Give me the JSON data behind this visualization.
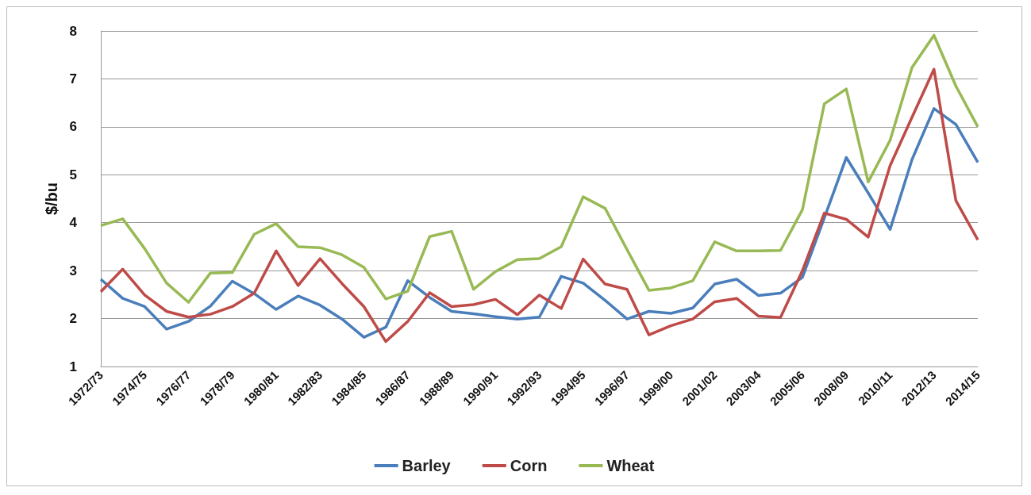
{
  "chart_data": {
    "type": "line",
    "ylabel": "$/bu",
    "categories": [
      "1972/73",
      null,
      "1974/75",
      null,
      "1976/77",
      null,
      "1978/79",
      null,
      "1980/81",
      null,
      "1982/83",
      null,
      "1984/85",
      null,
      "1986/87",
      null,
      "1988/89",
      null,
      "1990/91",
      null,
      "1992/93",
      null,
      "1994/95",
      null,
      "1996/97",
      null,
      "1999/00",
      null,
      "2001/02",
      null,
      "2003/04",
      null,
      "2005/06",
      null,
      "2008/09",
      null,
      "2010/11",
      null,
      "2012/13",
      null,
      "2014/15"
    ],
    "series": [
      {
        "name": "Barley",
        "color": "#4a7ebb",
        "values": [
          2.82,
          2.42,
          2.25,
          1.78,
          1.94,
          2.26,
          2.78,
          2.52,
          2.19,
          2.47,
          2.28,
          1.99,
          1.61,
          1.82,
          2.79,
          2.44,
          2.15,
          2.1,
          2.04,
          1.99,
          2.03,
          2.88,
          2.74,
          2.38,
          1.99,
          2.15,
          2.11,
          2.22,
          2.72,
          2.82,
          2.48,
          2.53,
          2.86,
          4.1,
          5.36,
          4.62,
          3.86,
          5.32,
          6.38,
          6.05,
          5.26
        ]
      },
      {
        "name": "Corn",
        "color": "#be4b48",
        "values": [
          2.56,
          3.03,
          2.49,
          2.15,
          2.03,
          2.09,
          2.25,
          2.53,
          3.41,
          2.69,
          3.25,
          2.73,
          2.25,
          1.52,
          1.94,
          2.54,
          2.25,
          2.29,
          2.4,
          2.08,
          2.49,
          2.21,
          3.24,
          2.72,
          2.61,
          1.66,
          1.85,
          1.99,
          2.35,
          2.42,
          2.05,
          2.02,
          3.0,
          4.2,
          4.07,
          3.7,
          5.19,
          6.2,
          7.2,
          4.46,
          3.64
        ]
      },
      {
        "name": "Wheat",
        "color": "#98b954",
        "values": [
          3.94,
          4.08,
          3.46,
          2.74,
          2.34,
          2.95,
          2.96,
          3.76,
          3.98,
          3.5,
          3.48,
          3.33,
          3.07,
          2.41,
          2.57,
          3.71,
          3.82,
          2.61,
          2.98,
          3.23,
          3.25,
          3.5,
          4.54,
          4.3,
          3.44,
          2.59,
          2.64,
          2.79,
          3.6,
          3.41,
          3.41,
          3.42,
          4.27,
          6.48,
          6.79,
          4.85,
          5.72,
          7.24,
          7.91,
          6.85,
          6.0
        ]
      }
    ],
    "ylim": [
      1,
      8
    ],
    "yticks": [
      1,
      2,
      3,
      4,
      5,
      6,
      7,
      8
    ],
    "grid": "y",
    "legend": "bottom",
    "marker": "none",
    "line_style": "solid"
  }
}
